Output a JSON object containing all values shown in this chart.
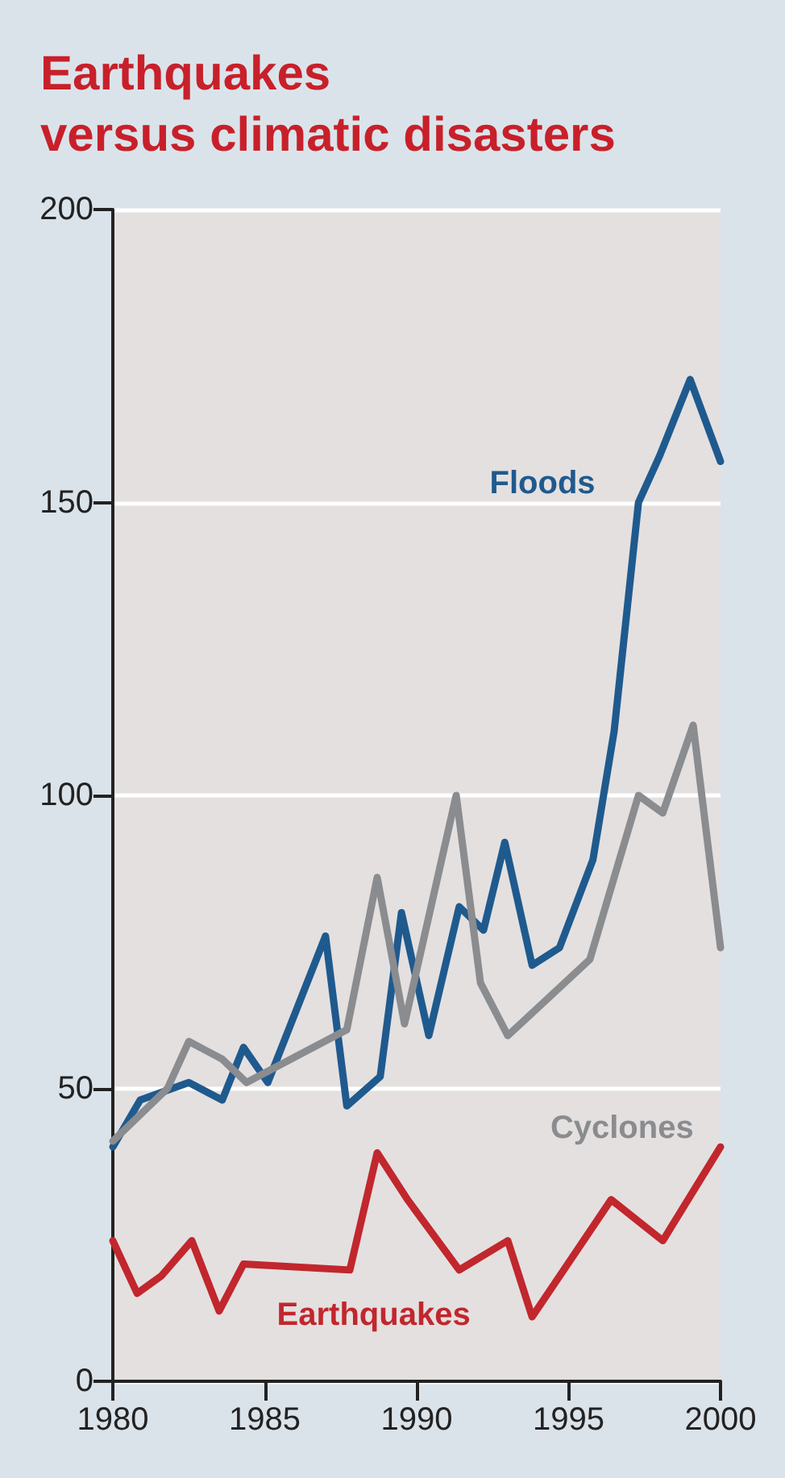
{
  "chart_data": {
    "type": "line",
    "title": "Earthquakes\nversus climatic disasters",
    "xlim": [
      1980,
      2000
    ],
    "xticks": [
      1980,
      1985,
      1990,
      1995,
      2000
    ],
    "ylim": [
      0,
      200
    ],
    "yticks": [
      0,
      50,
      100,
      150,
      200
    ],
    "grid": "y",
    "legend": false,
    "marker": "none",
    "series": [
      {
        "name": "Floods",
        "color": "#1f5a8e",
        "x": [
          1980,
          1980.9,
          1982.5,
          1983.6,
          1984.3,
          1985.1,
          1987.0,
          1987.7,
          1988.8,
          1989.5,
          1990.4,
          1991.4,
          1992.2,
          1992.9,
          1993.8,
          1994.7,
          1995.8,
          1996.5,
          1997.3,
          1998.0,
          1999.0,
          2000.0
        ],
        "values": [
          40,
          48,
          51,
          48,
          57,
          51,
          76,
          47,
          52,
          80,
          59,
          81,
          77,
          92,
          71,
          74,
          89,
          111,
          150,
          158,
          171,
          157
        ]
      },
      {
        "name": "Cyclones",
        "color": "#8a8c8f",
        "x": [
          1980,
          1981.8,
          1982.5,
          1983.6,
          1984.4,
          1987.7,
          1988.7,
          1989.6,
          1991.3,
          1992.1,
          1993.0,
          1995.7,
          1997.3,
          1998.1,
          1999.1,
          2000.0
        ],
        "values": [
          41,
          50,
          58,
          55,
          51,
          60,
          86,
          61,
          100,
          68,
          59,
          72,
          100,
          97,
          112,
          74
        ]
      },
      {
        "name": "Earthquakes",
        "color": "#c1272d",
        "x": [
          1980,
          1980.8,
          1981.6,
          1982.6,
          1983.5,
          1984.3,
          1987.8,
          1988.7,
          1989.7,
          1991.4,
          1993.0,
          1993.8,
          1996.4,
          1998.1,
          2000.0
        ],
        "values": [
          24,
          15,
          18,
          24,
          12,
          20,
          19,
          39,
          31,
          19,
          24,
          11,
          31,
          24,
          40
        ]
      }
    ]
  }
}
